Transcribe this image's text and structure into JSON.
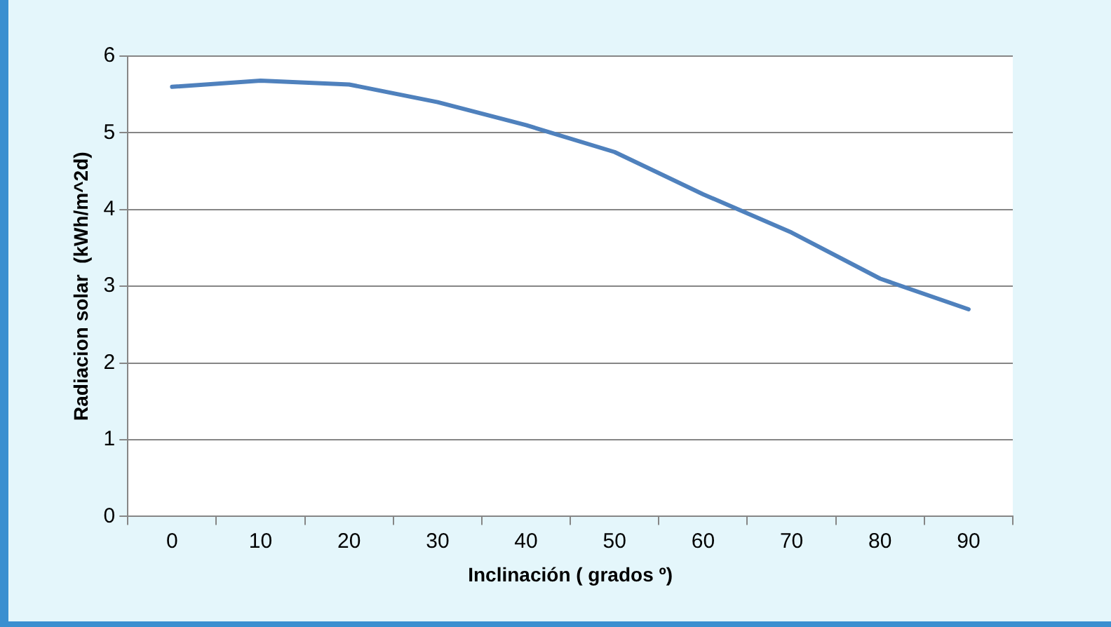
{
  "chart_data": {
    "type": "line",
    "xlabel": "Inclinación ( grados º)",
    "ylabel": "Radiacion solar  (kWh/m^2d)",
    "categories": [
      "0",
      "10",
      "20",
      "30",
      "40",
      "50",
      "60",
      "70",
      "80",
      "90"
    ],
    "series": [
      {
        "color": "#4f81bd",
        "values": [
          5.6,
          5.68,
          5.63,
          5.4,
          5.1,
          4.75,
          4.2,
          3.7,
          3.1,
          2.7
        ]
      }
    ],
    "ylim": [
      0,
      6
    ],
    "yticks": [
      0,
      1,
      2,
      3,
      4,
      5,
      6
    ],
    "grid": "y",
    "legend": false,
    "marker": "none"
  }
}
